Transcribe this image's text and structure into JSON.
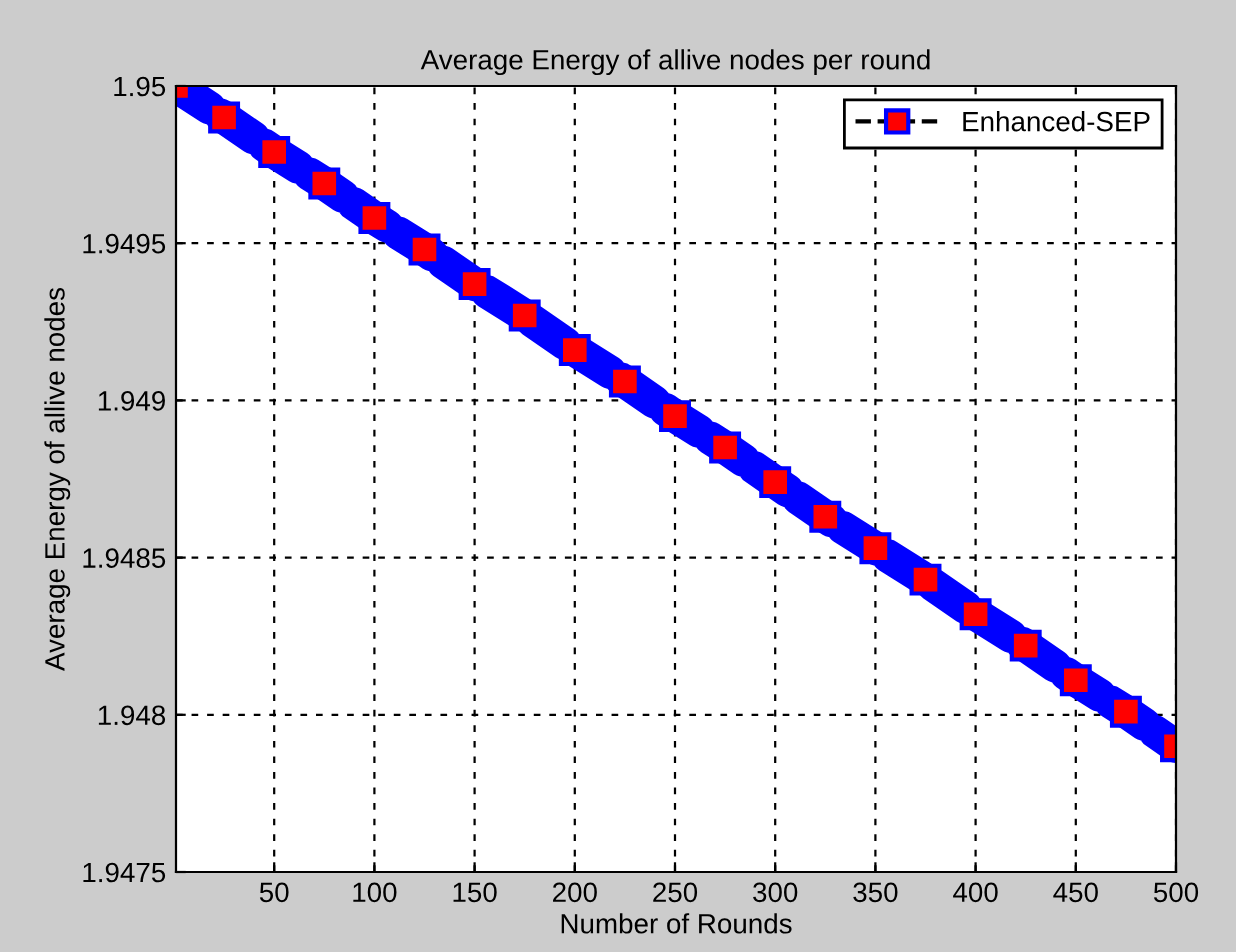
{
  "chart_data": {
    "type": "line",
    "title": "Average Energy of allive nodes per round",
    "xlabel": "Number of Rounds",
    "ylabel": "Average Energy of allive nodes",
    "x": [
      1,
      25,
      50,
      75,
      100,
      125,
      150,
      175,
      200,
      225,
      250,
      275,
      300,
      325,
      350,
      375,
      400,
      425,
      450,
      475,
      500
    ],
    "series": [
      {
        "name": "Enhanced-SEP",
        "color": "#0000ff",
        "values": [
          1.95,
          1.9499,
          1.94979,
          1.94969,
          1.94958,
          1.94948,
          1.94937,
          1.94927,
          1.94916,
          1.94906,
          1.94895,
          1.94885,
          1.94874,
          1.94863,
          1.94853,
          1.94843,
          1.94832,
          1.94822,
          1.94811,
          1.94801,
          1.9479
        ]
      }
    ],
    "xlim": [
      1,
      500
    ],
    "xticks": [
      50,
      100,
      150,
      200,
      250,
      300,
      350,
      400,
      450,
      500
    ],
    "ylim": [
      1.9475,
      1.95
    ],
    "yticks": [
      1.9475,
      1.948,
      1.9485,
      1.949,
      1.9495,
      {
        "value": 1.95,
        "label": "1.95"
      }
    ],
    "grid": true,
    "legend": "top right",
    "marker": "square",
    "line_style": "dashed"
  }
}
